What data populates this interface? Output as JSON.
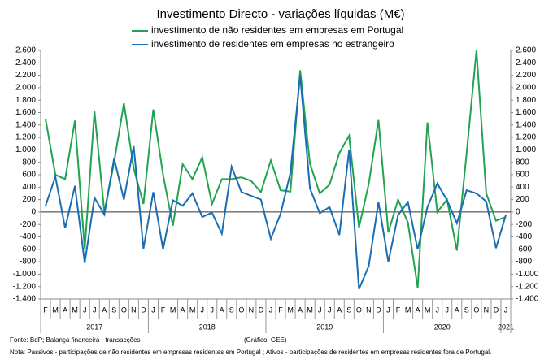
{
  "chart_data": {
    "type": "line",
    "title": "Investimento Directo - variações líquidas (M€)",
    "categories": [
      "F",
      "M",
      "A",
      "M",
      "J",
      "J",
      "A",
      "S",
      "O",
      "N",
      "D",
      "J",
      "F",
      "M",
      "A",
      "M",
      "J",
      "J",
      "A",
      "S",
      "O",
      "N",
      "D",
      "J",
      "F",
      "M",
      "A",
      "M",
      "J",
      "J",
      "A",
      "S",
      "O",
      "N",
      "D",
      "J",
      "F",
      "M",
      "A",
      "M",
      "J",
      "J",
      "A",
      "S",
      "O",
      "N",
      "D",
      "J"
    ],
    "year_groups": [
      {
        "label": "2017",
        "size": 11
      },
      {
        "label": "2018",
        "size": 12
      },
      {
        "label": "2019",
        "size": 12
      },
      {
        "label": "2020",
        "size": 12
      },
      {
        "label": "2021",
        "size": 1
      }
    ],
    "series": [
      {
        "name": "investimento de não residentes em empresas em Portugal",
        "color": "#22a34f",
        "values": [
          1500,
          600,
          530,
          1470,
          -600,
          1620,
          0,
          800,
          1750,
          700,
          130,
          1650,
          600,
          -220,
          770,
          530,
          880,
          130,
          530,
          530,
          560,
          500,
          320,
          830,
          350,
          330,
          2280,
          780,
          300,
          440,
          950,
          1230,
          -250,
          450,
          1480,
          -330,
          200,
          -170,
          -1220,
          1440,
          0,
          200,
          -620,
          950,
          2600,
          300,
          -140,
          -80
        ]
      },
      {
        "name": "investimento de residentes em empresas no estrangeiro",
        "color": "#1a6db4",
        "values": [
          100,
          570,
          -260,
          420,
          -820,
          230,
          -40,
          860,
          200,
          1060,
          -590,
          320,
          -600,
          190,
          100,
          300,
          -80,
          -10,
          -350,
          730,
          320,
          260,
          200,
          -430,
          -30,
          630,
          2200,
          380,
          -20,
          80,
          -370,
          1000,
          -1240,
          -870,
          160,
          -800,
          -50,
          160,
          -600,
          80,
          460,
          190,
          -180,
          350,
          300,
          170,
          -580,
          -50
        ]
      }
    ],
    "ylim": [
      -1400,
      2600
    ],
    "yticks": [
      {
        "value": 2600,
        "label": "2.600"
      },
      {
        "value": 2400,
        "label": "2.400"
      },
      {
        "value": 2200,
        "label": "2.200"
      },
      {
        "value": 2000,
        "label": "2.000"
      },
      {
        "value": 1800,
        "label": "1.800"
      },
      {
        "value": 1600,
        "label": "1.600"
      },
      {
        "value": 1400,
        "label": "1.400"
      },
      {
        "value": 1200,
        "label": "1.200"
      },
      {
        "value": 1000,
        "label": "1.000"
      },
      800,
      600,
      400,
      200,
      0,
      -200,
      -400,
      -600,
      -800,
      {
        "value": -1000,
        "label": "-1.000"
      },
      {
        "value": -1200,
        "label": "-1.200"
      },
      {
        "value": -1400,
        "label": "-1.400"
      }
    ],
    "y2lim": [
      -1400,
      2600
    ],
    "y2ticks": [
      {
        "value": 2600,
        "label": "2.600"
      },
      {
        "value": 2400,
        "label": "2.400"
      },
      {
        "value": 2200,
        "label": "2.200"
      },
      {
        "value": 2000,
        "label": "2.000"
      },
      {
        "value": 1800,
        "label": "1.800"
      },
      {
        "value": 1600,
        "label": "1.600"
      },
      {
        "value": 1400,
        "label": "1.400"
      },
      {
        "value": 1200,
        "label": "1.200"
      },
      {
        "value": 1000,
        "label": "1.000"
      },
      800,
      600,
      400,
      200,
      0,
      -200,
      -400,
      -600,
      -800,
      {
        "value": -1000,
        "label": "-1.000"
      },
      {
        "value": -1200,
        "label": "-1.200"
      },
      {
        "value": -1400,
        "label": "-1.400"
      }
    ],
    "source": "Fonte: BdP; Balança financeira - transacções",
    "credit": "(Gráfico: GEE)",
    "note": "Nota: Passivos - participações de não residentes em empresas residentes em Portugal ; Ativos - participações de residentes em empresas residentes fora de Portugal."
  }
}
